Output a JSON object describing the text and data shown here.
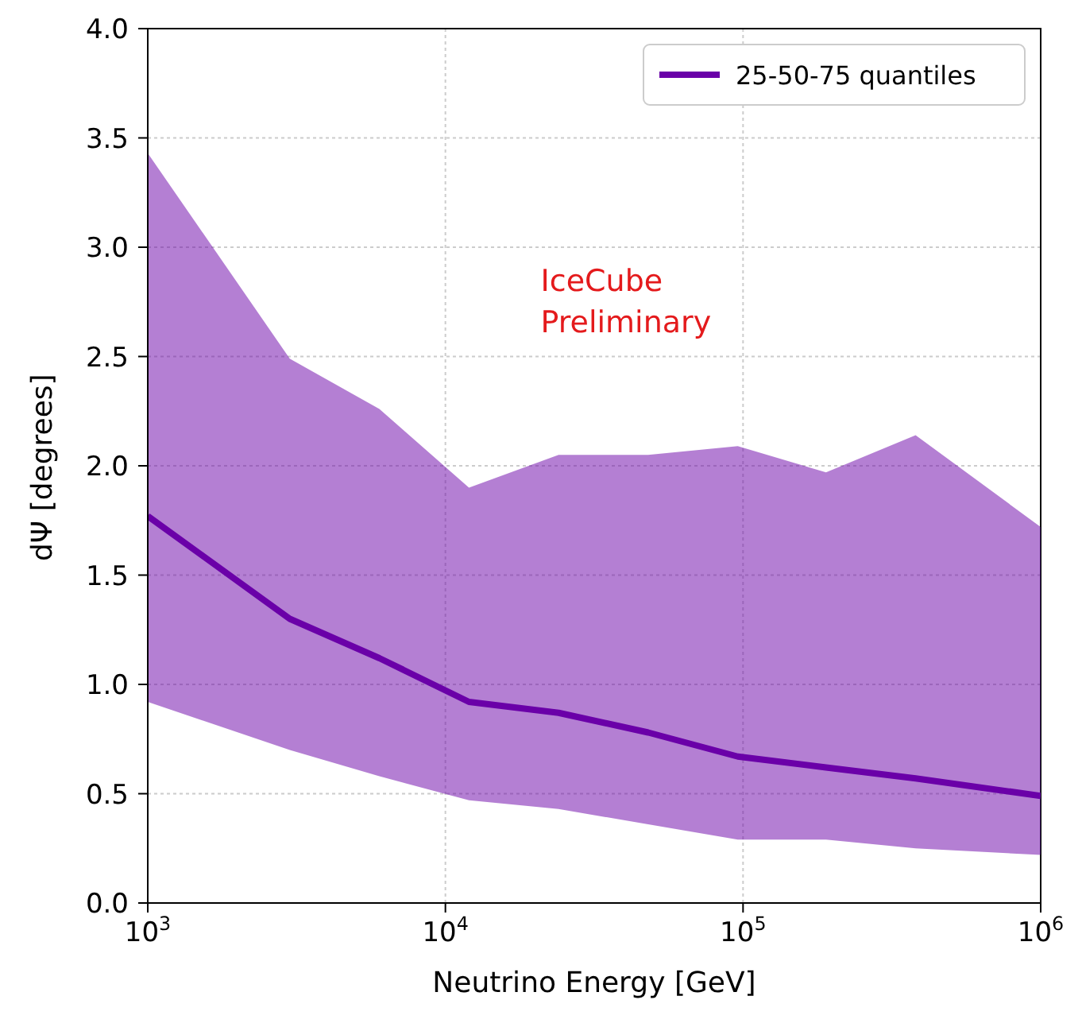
{
  "chart_data": {
    "type": "line",
    "xlabel": "Neutrino Energy [GeV]",
    "ylabel": "dΨ [degrees]",
    "x": [
      1000,
      3000,
      6000,
      12000,
      24000,
      48000,
      96000,
      190000,
      380000,
      1000000
    ],
    "series": [
      {
        "name": "25-50-75 quantiles",
        "color": "#6a00a8",
        "values": [
          1.77,
          1.3,
          1.12,
          0.92,
          0.87,
          0.78,
          0.67,
          0.62,
          0.57,
          0.49
        ],
        "lower": [
          0.92,
          0.7,
          0.58,
          0.47,
          0.43,
          0.36,
          0.29,
          0.29,
          0.25,
          0.22
        ],
        "upper": [
          3.43,
          2.49,
          2.26,
          1.9,
          2.05,
          2.05,
          2.09,
          1.97,
          2.14,
          1.72
        ]
      }
    ],
    "log": "x",
    "xlim": [
      1000,
      1000000
    ],
    "xticks": [
      {
        "value": 1000,
        "label": "10$^{3}$"
      },
      {
        "value": 10000,
        "label": "10$^{4}$"
      },
      {
        "value": 100000,
        "label": "10$^{5}$"
      },
      {
        "value": 1000000,
        "label": "10$^{6}$"
      }
    ],
    "ylim": [
      0,
      4
    ],
    "yticks": [
      {
        "value": 0,
        "label": "0.0"
      },
      0.5,
      {
        "value": 1,
        "label": "1.0"
      },
      1.5,
      {
        "value": 2,
        "label": "2.0"
      },
      2.5,
      {
        "value": 3,
        "label": "3.0"
      },
      3.5,
      {
        "value": 4,
        "label": "4.0"
      }
    ],
    "grid": true,
    "legend": "top right",
    "line_style": "solid",
    "marker": "none",
    "annotations": [
      "IceCube\nPreliminary"
    ]
  }
}
